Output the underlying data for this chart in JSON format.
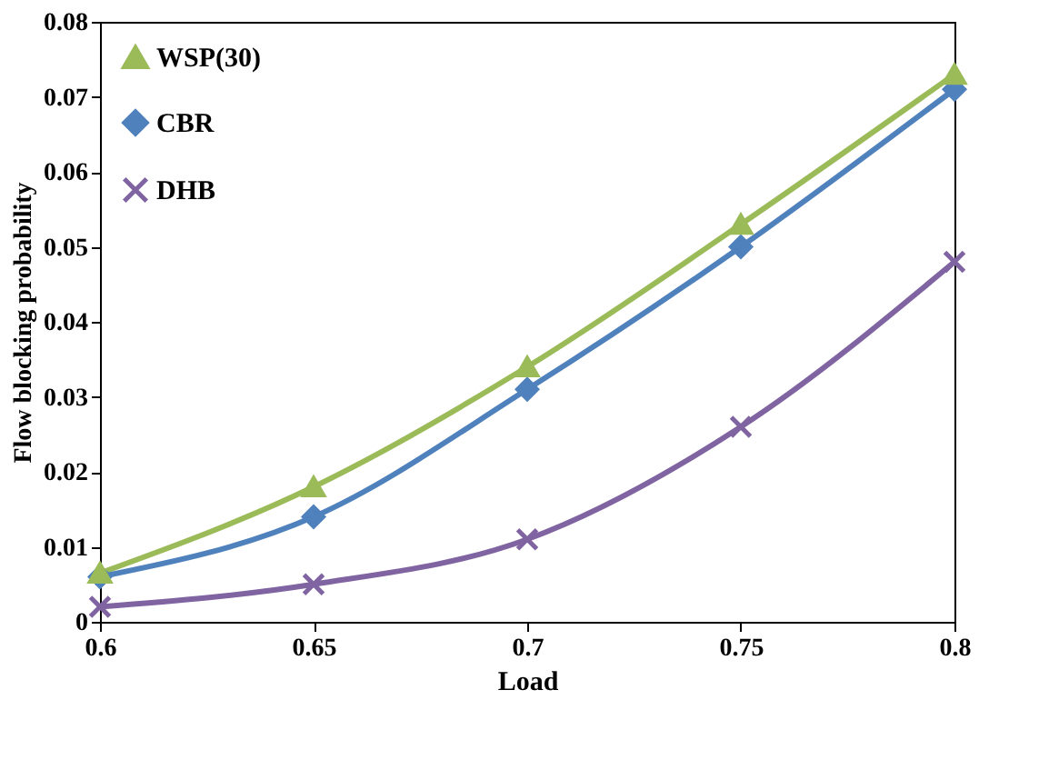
{
  "chart_data": {
    "type": "line",
    "xlabel": "Load",
    "ylabel": "Flow blocking probability",
    "x": [
      0.6,
      0.65,
      0.7,
      0.75,
      0.8
    ],
    "series": [
      {
        "name": "WSP(30)",
        "color": "#9bbb59",
        "marker": "triangle",
        "values": [
          0.0065,
          0.018,
          0.034,
          0.053,
          0.073
        ]
      },
      {
        "name": "CBR",
        "color": "#4f81bd",
        "marker": "diamond",
        "values": [
          0.006,
          0.014,
          0.031,
          0.05,
          0.071
        ]
      },
      {
        "name": "DHB",
        "color": "#8064a2",
        "marker": "cross",
        "values": [
          0.002,
          0.005,
          0.011,
          0.026,
          0.048
        ]
      }
    ],
    "xlim": [
      0.6,
      0.8
    ],
    "xticks": [
      0.6,
      0.65,
      0.7,
      0.75,
      0.8
    ],
    "ylim": [
      0,
      0.08
    ],
    "yticks": [
      0,
      0.01,
      0.02,
      0.03,
      0.04,
      0.05,
      0.06,
      0.07,
      0.08
    ],
    "grid": false,
    "legend": "top left",
    "line_style": "solid"
  }
}
